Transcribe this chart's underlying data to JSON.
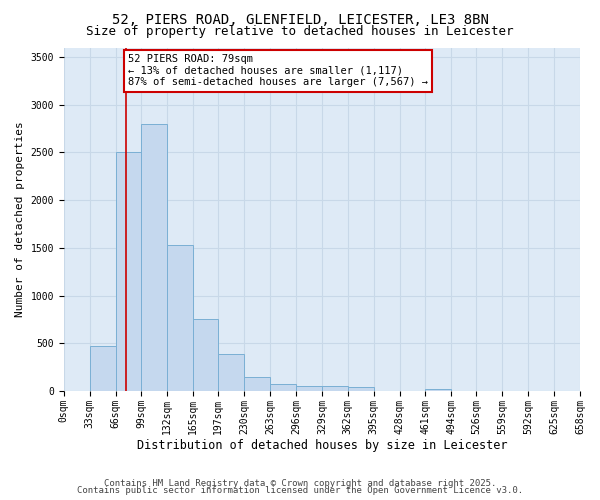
{
  "title1": "52, PIERS ROAD, GLENFIELD, LEICESTER, LE3 8BN",
  "title2": "Size of property relative to detached houses in Leicester",
  "xlabel": "Distribution of detached houses by size in Leicester",
  "ylabel": "Number of detached properties",
  "bin_edges": [
    0,
    33,
    66,
    99,
    132,
    165,
    197,
    230,
    263,
    296,
    329,
    362,
    395,
    428,
    461,
    494,
    526,
    559,
    592,
    625,
    658
  ],
  "bar_heights": [
    5,
    470,
    2500,
    2800,
    1530,
    750,
    390,
    150,
    70,
    55,
    55,
    40,
    5,
    5,
    25,
    5,
    5,
    5,
    5,
    5
  ],
  "bar_color": "#c5d8ee",
  "bar_edgecolor": "#7aafd4",
  "property_size": 79,
  "red_line_color": "#cc0000",
  "annotation_line1": "52 PIERS ROAD: 79sqm",
  "annotation_line2": "← 13% of detached houses are smaller (1,117)",
  "annotation_line3": "87% of semi-detached houses are larger (7,567) →",
  "annotation_box_color": "#ffffff",
  "annotation_box_edgecolor": "#cc0000",
  "ylim": [
    0,
    3600
  ],
  "yticks": [
    0,
    500,
    1000,
    1500,
    2000,
    2500,
    3000,
    3500
  ],
  "grid_color": "#c8d8e8",
  "bg_color": "#deeaf6",
  "footer1": "Contains HM Land Registry data © Crown copyright and database right 2025.",
  "footer2": "Contains public sector information licensed under the Open Government Licence v3.0.",
  "title1_fontsize": 10,
  "title2_fontsize": 9,
  "xlabel_fontsize": 8.5,
  "ylabel_fontsize": 8,
  "tick_fontsize": 7,
  "annotation_fontsize": 7.5,
  "footer_fontsize": 6.5
}
